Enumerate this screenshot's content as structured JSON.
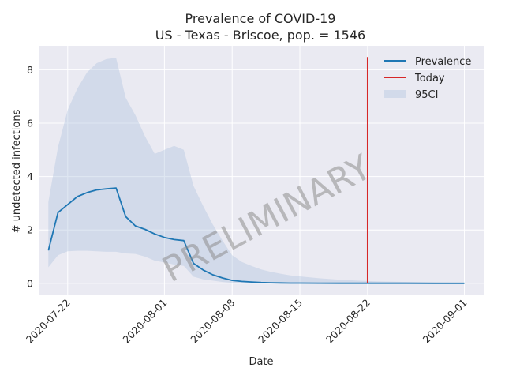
{
  "chart_data": {
    "type": "line",
    "title": "Prevalence of COVID-19",
    "subtitle": "US - Texas - Briscoe, pop. = 1546",
    "xlabel": "Date",
    "ylabel": "# undetected infections",
    "x_ticks": [
      "2020-07-22",
      "2020-08-01",
      "2020-08-08",
      "2020-08-15",
      "2020-08-22",
      "2020-09-01"
    ],
    "y_ticks": [
      0,
      2,
      4,
      6,
      8
    ],
    "xlim": [
      "2020-07-19",
      "2020-09-03"
    ],
    "ylim": [
      -0.42,
      8.9
    ],
    "grid": true,
    "legend_position": "top-right",
    "watermark": "PRELIMINARY",
    "colors": {
      "prevalence": "#1f77b4",
      "today": "#d62728",
      "band": "#b0c4de",
      "background": "#eaeaf2",
      "grid": "#ffffff"
    },
    "series": [
      {
        "name": "Prevalence",
        "x": [
          "2020-07-20",
          "2020-07-21",
          "2020-07-22",
          "2020-07-23",
          "2020-07-24",
          "2020-07-25",
          "2020-07-26",
          "2020-07-27",
          "2020-07-28",
          "2020-07-29",
          "2020-07-30",
          "2020-07-31",
          "2020-08-01",
          "2020-08-02",
          "2020-08-03",
          "2020-08-04",
          "2020-08-05",
          "2020-08-06",
          "2020-08-07",
          "2020-08-08",
          "2020-08-09",
          "2020-08-10",
          "2020-08-11",
          "2020-08-12",
          "2020-08-13",
          "2020-08-14",
          "2020-08-15",
          "2020-08-17",
          "2020-08-19",
          "2020-08-21",
          "2020-08-23",
          "2020-08-26",
          "2020-08-29",
          "2020-09-01"
        ],
        "values": [
          1.23,
          2.65,
          2.95,
          3.25,
          3.4,
          3.5,
          3.54,
          3.57,
          2.5,
          2.15,
          2.02,
          1.85,
          1.72,
          1.64,
          1.6,
          0.75,
          0.5,
          0.32,
          0.2,
          0.11,
          0.07,
          0.05,
          0.03,
          0.02,
          0.015,
          0.01,
          0.008,
          0.005,
          0.004,
          0.003,
          0.002,
          0.002,
          0.001,
          0.001
        ]
      },
      {
        "name": "Today",
        "x": [
          "2020-08-22",
          "2020-08-22"
        ],
        "values": [
          0,
          8.48
        ]
      }
    ],
    "band": {
      "name": "95CI",
      "x": [
        "2020-07-20",
        "2020-07-21",
        "2020-07-22",
        "2020-07-23",
        "2020-07-24",
        "2020-07-25",
        "2020-07-26",
        "2020-07-27",
        "2020-07-28",
        "2020-07-29",
        "2020-07-30",
        "2020-07-31",
        "2020-08-01",
        "2020-08-02",
        "2020-08-03",
        "2020-08-04",
        "2020-08-05",
        "2020-08-06",
        "2020-08-07",
        "2020-08-08",
        "2020-08-09",
        "2020-08-10",
        "2020-08-11",
        "2020-08-12",
        "2020-08-13",
        "2020-08-14",
        "2020-08-15",
        "2020-08-17",
        "2020-08-19",
        "2020-08-21",
        "2020-08-23",
        "2020-08-26",
        "2020-08-29",
        "2020-09-01"
      ],
      "upper": [
        3.05,
        5.1,
        6.5,
        7.3,
        7.9,
        8.25,
        8.4,
        8.45,
        6.95,
        6.3,
        5.5,
        4.85,
        5.0,
        5.15,
        5.0,
        3.65,
        2.9,
        2.2,
        1.6,
        1.05,
        0.8,
        0.65,
        0.52,
        0.43,
        0.36,
        0.3,
        0.26,
        0.19,
        0.14,
        0.1,
        0.07,
        0.05,
        0.03,
        0.02
      ],
      "lower": [
        0.6,
        1.05,
        1.2,
        1.22,
        1.22,
        1.2,
        1.18,
        1.18,
        1.12,
        1.1,
        1.0,
        0.85,
        0.78,
        0.7,
        0.65,
        0.25,
        0.15,
        0.1,
        0.05,
        0.02,
        0.01,
        0.005,
        0.003,
        0.002,
        0.001,
        0.001,
        0.001,
        0.0,
        0.0,
        0.0,
        0.0,
        0.0,
        0.0,
        0.0
      ]
    }
  }
}
